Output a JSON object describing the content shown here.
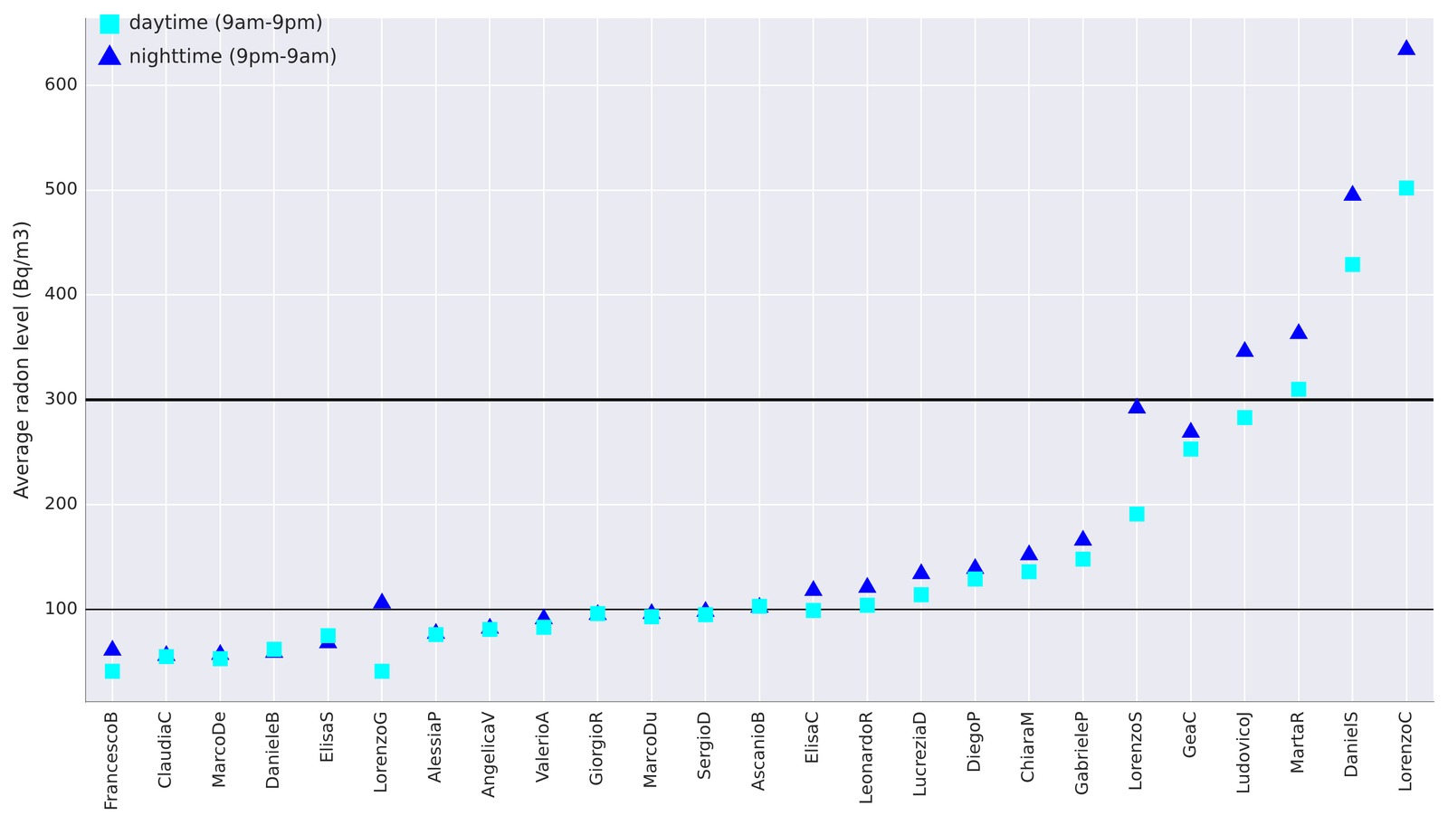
{
  "chart_data": {
    "type": "scatter",
    "y_label": "Average radon level (Bq/m3)",
    "categories": [
      "FrancescoB",
      "ClaudiaC",
      "MarcoDe",
      "DanieleB",
      "ElisaS",
      "LorenzoG",
      "AlessiaP",
      "AngelicaV",
      "ValerioA",
      "GiorgioR",
      "MarcoDu",
      "SergioD",
      "AscanioB",
      "ElisaC",
      "LeonardoR",
      "LucreziaD",
      "DiegoP",
      "ChiaraM",
      "GabrieleP",
      "LorenzoS",
      "GeaC",
      "LudovicoJ",
      "MartaR",
      "DanielS",
      "LorenzoC"
    ],
    "series": [
      {
        "name": "daytime (9am-9pm)",
        "color": "#00ffff",
        "marker": "square",
        "values": [
          41,
          55,
          53,
          62,
          75,
          41,
          76,
          81,
          83,
          96,
          93,
          95,
          103,
          99,
          104,
          114,
          129,
          136,
          148,
          191,
          253,
          283,
          310,
          429,
          502
        ]
      },
      {
        "name": "nighttime (9pm-9am)",
        "color": "#0000ff",
        "marker": "triangle",
        "values": [
          61,
          56,
          57,
          59,
          68,
          106,
          77,
          82,
          91,
          95,
          96,
          98,
          102,
          118,
          121,
          134,
          139,
          152,
          166,
          292,
          269,
          346,
          363,
          495,
          634
        ]
      }
    ],
    "reference_lines": [
      100,
      300
    ],
    "ylim": [
      12,
      664
    ],
    "yticks": [
      100,
      200,
      300,
      400,
      500,
      600
    ],
    "grid": true,
    "legend": "upper left"
  }
}
